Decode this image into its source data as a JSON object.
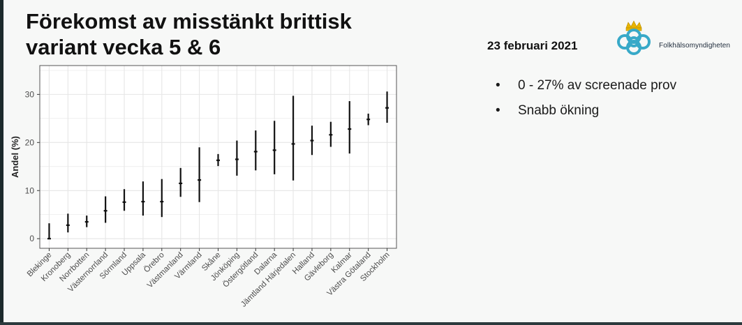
{
  "slide": {
    "title_lines": [
      "Förekomst av misstänkt brittisk",
      "variant vecka 5 & 6"
    ],
    "date": "23 februari 2021",
    "logo_text": "Folkhälsomyndigheten",
    "logo_icon": "crown-rings-logo-icon",
    "bullets": [
      "0 - 27% av screenade prov",
      "Snabb ökning"
    ],
    "bullet_symbol": "•"
  },
  "chart_data": {
    "type": "errorbar",
    "title": "",
    "xlabel": "",
    "ylabel": "Andel (%)",
    "ylim": [
      -2,
      36
    ],
    "yticks": [
      0,
      10,
      20,
      30
    ],
    "grid": true,
    "categories": [
      "Blekinge",
      "Kronoberg",
      "Norrbotten",
      "Västernorrland",
      "Sörmland",
      "Uppsala",
      "Örebro",
      "Västmanland",
      "Värmland",
      "Skåne",
      "Jönköping",
      "Östergötland",
      "Dalarna",
      "Jämtland Härjedalen",
      "Halland",
      "Gävleborg",
      "Kalmar",
      "Västra Götaland",
      "Stockholm"
    ],
    "values": [
      0,
      2.8,
      3.5,
      5.8,
      7.6,
      7.7,
      7.7,
      11.5,
      12.2,
      16.3,
      16.5,
      18.1,
      18.4,
      19.7,
      20.4,
      21.6,
      22.8,
      24.8,
      27.2
    ],
    "lower": [
      0,
      1.3,
      2.4,
      3.3,
      5.8,
      4.8,
      4.5,
      8.7,
      7.6,
      15.1,
      13.1,
      14.2,
      13.4,
      12.1,
      17.4,
      19.1,
      17.7,
      23.6,
      24.1
    ],
    "upper": [
      3.2,
      5.2,
      4.8,
      8.8,
      10.3,
      11.9,
      12.4,
      14.7,
      19.0,
      17.6,
      20.4,
      22.5,
      24.5,
      29.7,
      23.5,
      24.3,
      28.6,
      26.0,
      30.6
    ],
    "colors": {
      "mark": "#111111",
      "grid": "#e6e6e6",
      "panel_border": "#555555",
      "axis_text": "#4d4d4d"
    }
  }
}
